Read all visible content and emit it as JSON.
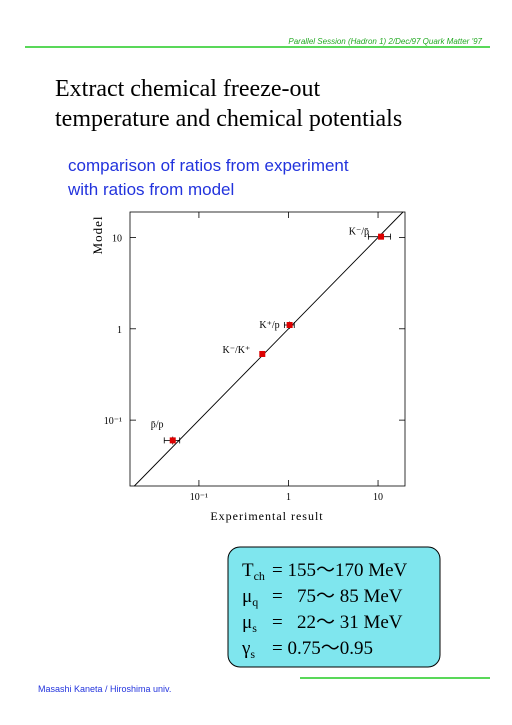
{
  "header": "Parallel Session (Hadron 1) 2/Dec/97 Quark Matter '97",
  "title": [
    "Extract chemical freeze-out",
    "temperature and chemical potentials"
  ],
  "subtitle": [
    "comparison of ratios from experiment",
    "with ratios from model"
  ],
  "chart_data": {
    "type": "scatter",
    "x_label": "Experimental result",
    "y_label": "Model",
    "xscale": "log",
    "yscale": "log",
    "xlim": [
      0.017,
      20
    ],
    "ylim": [
      0.019,
      19
    ],
    "xticks": [
      {
        "value": 0.1,
        "label": "10⁻¹"
      },
      1,
      10
    ],
    "yticks": [
      {
        "value": 0.1,
        "label": "10⁻¹"
      },
      1,
      10
    ],
    "diagonal": true,
    "color": "#dd0000",
    "point_labels": [
      "K⁻/p̄",
      "K⁺/p",
      "K⁻/K⁺",
      "p̄/p"
    ],
    "x": [
      10.8,
      1.03,
      0.51,
      0.051
    ],
    "values": [
      10.2,
      1.1,
      0.53,
      0.06
    ],
    "xerr": [
      3,
      0.13,
      0,
      0.01
    ],
    "yerr": [
      0,
      0.1,
      0,
      0.006
    ]
  },
  "parameters": [
    {
      "symbol": "T",
      "sub": "ch",
      "value": "= 155〜170 MeV"
    },
    {
      "symbol": "μ",
      "sub": "q",
      "value": "=   75〜 85 MeV"
    },
    {
      "symbol": "μ",
      "sub": "s",
      "value": "=   22〜 31 MeV"
    },
    {
      "symbol": "γ",
      "sub": "s",
      "value": "= 0.75〜0.95"
    }
  ],
  "footer": "Masashi Kaneta / Hiroshima univ."
}
